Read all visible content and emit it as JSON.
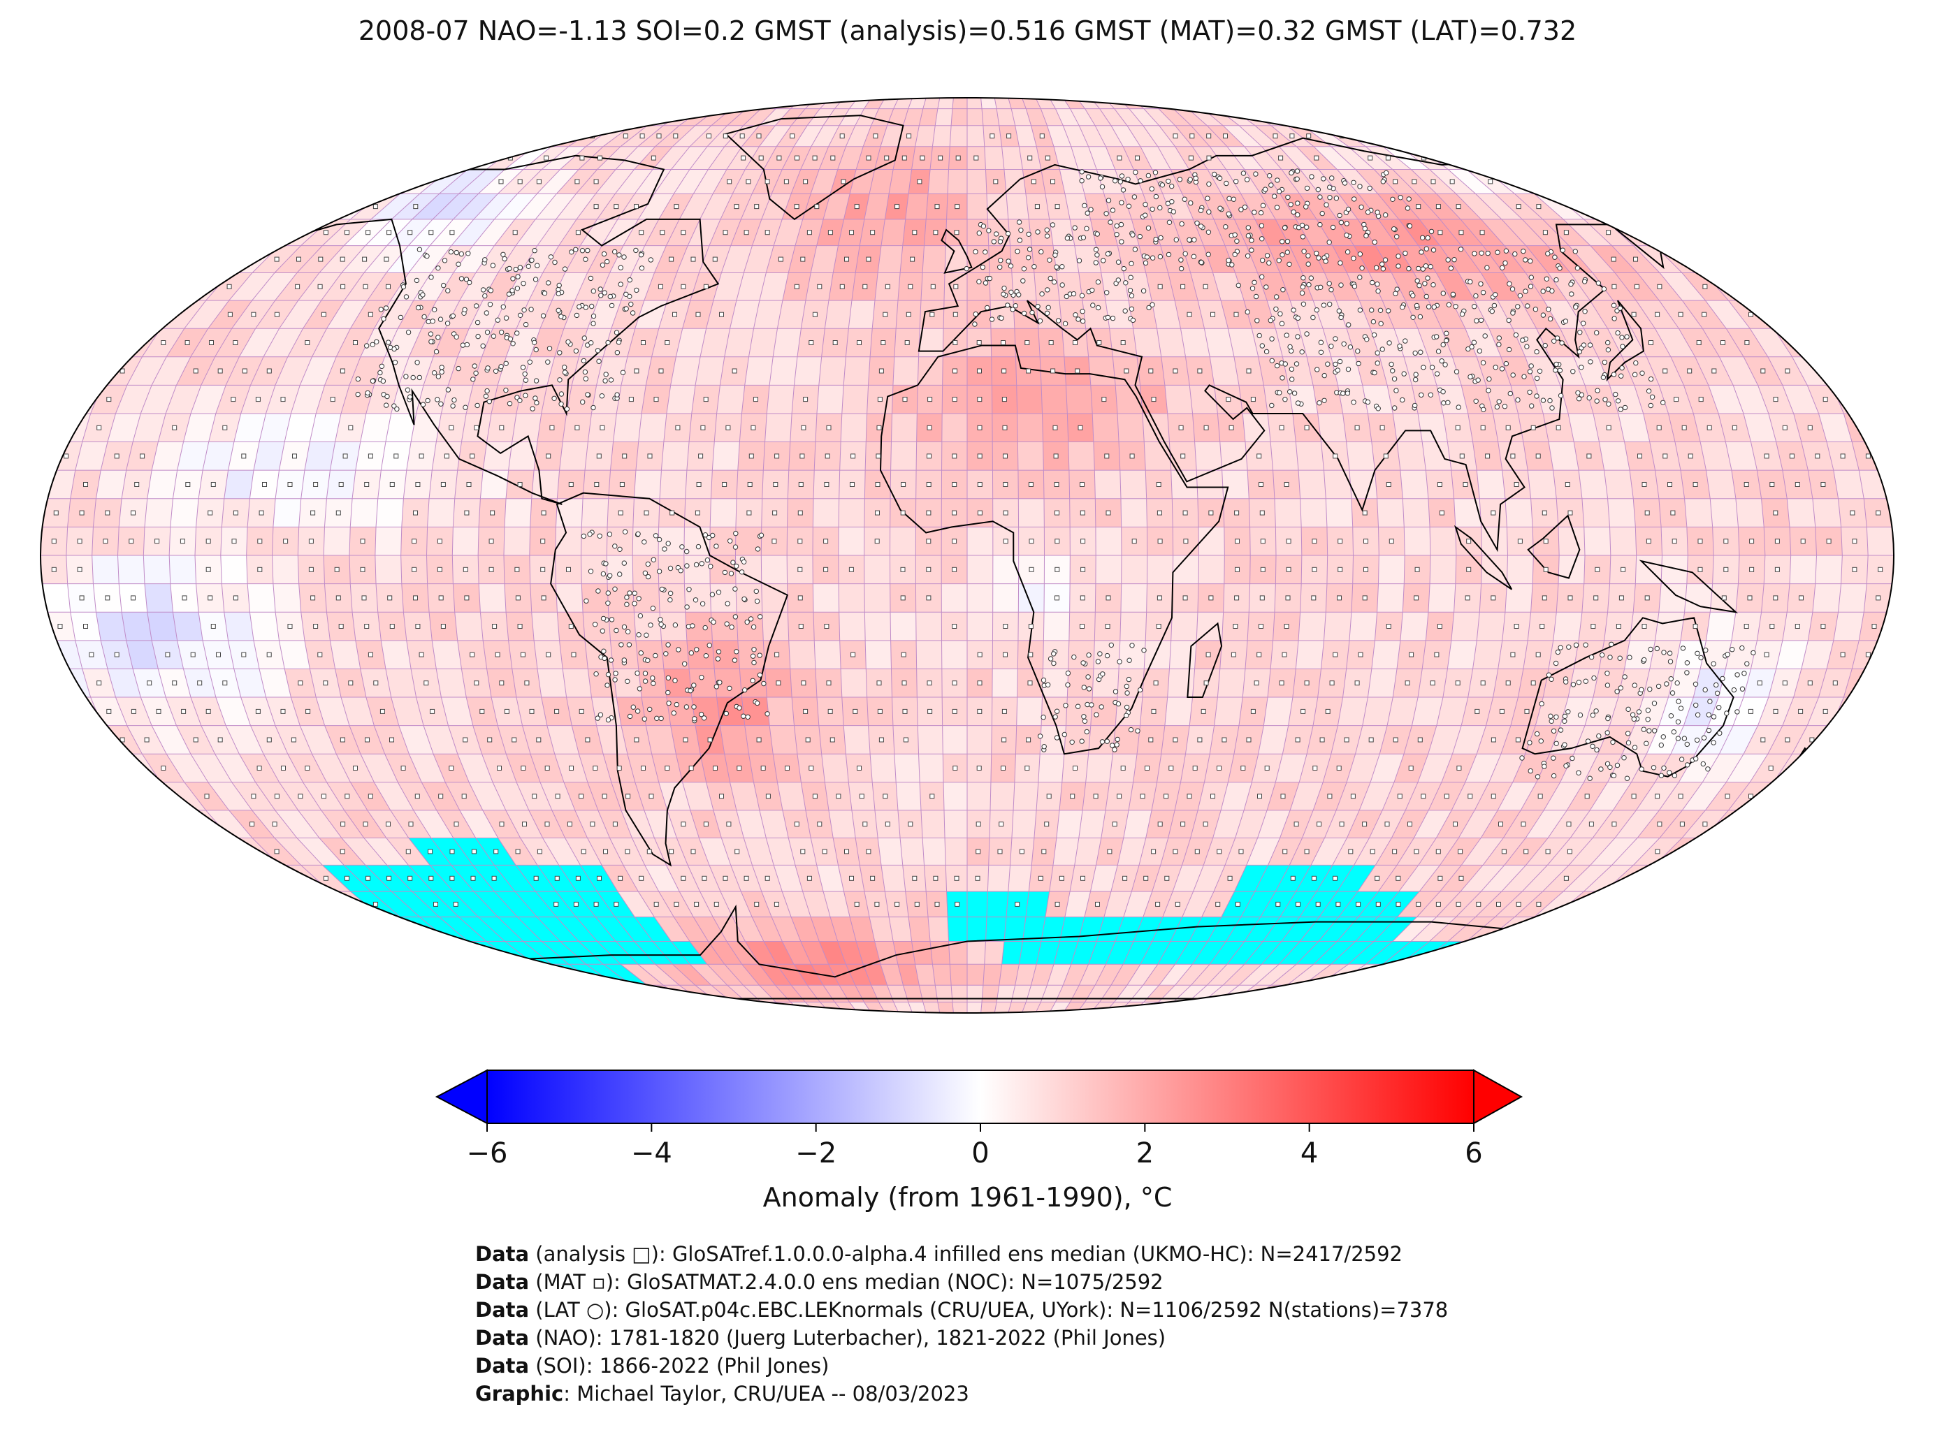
{
  "title": "2008-07 NAO=-1.13 SOI=0.2 GMST (analysis)=0.516 GMST (MAT)=0.32 GMST (LAT)=0.732",
  "colorbar": {
    "label": "Anomaly (from 1961-1990), °C",
    "ticks": [
      "−6",
      "−4",
      "−2",
      "0",
      "2",
      "4",
      "6"
    ],
    "range": [
      -6,
      6
    ],
    "colors": {
      "low": "#0000ff",
      "mid": "#ffffff",
      "high": "#ff0000",
      "missing": "#00ffff"
    }
  },
  "map": {
    "projection": "Robinson",
    "grid": "5° × 5°",
    "colors": {
      "gridline": "#c08cc8",
      "coast": "#000000",
      "missing": "#00ffff",
      "outline": "#000000"
    }
  },
  "credits": [
    {
      "key": "Data",
      "text": " (analysis □): GloSATref.1.0.0.0-alpha.4 infilled ens median (UKMO-HC): N=2417/2592"
    },
    {
      "key": "Data",
      "text": " (MAT ▫): GloSATMAT.2.4.0.0 ens median (NOC): N=1075/2592"
    },
    {
      "key": "Data",
      "text": " (LAT ○): GloSAT.p04c.EBC.LEKnormals (CRU/UEA, UYork): N=1106/2592 N(stations)=7378"
    },
    {
      "key": "Data",
      "text": " (NAO): 1781-1820 (Juerg Luterbacher), 1821-2022 (Phil Jones)"
    },
    {
      "key": "Data",
      "text": " (SOI): 1866-2022 (Phil Jones)"
    },
    {
      "key": "Graphic",
      "text": ": Michael Taylor, CRU/UEA -- 08/03/2023"
    }
  ]
}
